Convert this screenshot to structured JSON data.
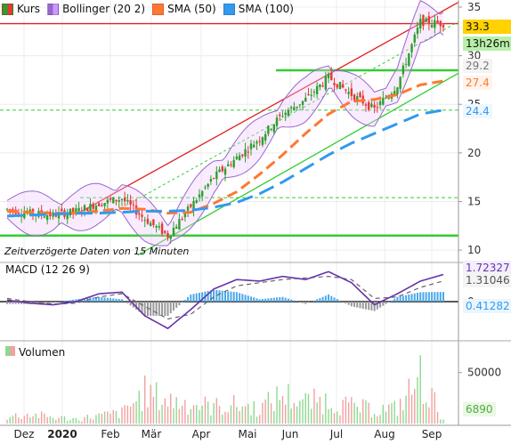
{
  "legend": [
    {
      "label": "Kurs",
      "swatch": [
        "#2ca02c",
        "#e53935"
      ]
    },
    {
      "label": "Bollinger (20 2)",
      "swatch": [
        "#9966cc",
        "#cc99ff"
      ]
    },
    {
      "label": "SMA (50)",
      "swatch": [
        "#ff7733",
        "#ff7733"
      ]
    },
    {
      "label": "SMA (100)",
      "swatch": [
        "#3399ee",
        "#3399ee"
      ]
    }
  ],
  "note": "Zeitverzögerte Daten von 15 Minuten",
  "price_tags": {
    "last": "33.3",
    "time": "13h26m",
    "bb_upper": "29.2",
    "sma50": "27.4",
    "sma100": "24.4"
  },
  "macd_tags": {
    "macd": "1.72327",
    "signal": "1.31046",
    "hist": "0.41282"
  },
  "volume_tags": {
    "last": "6890"
  },
  "colors": {
    "up": "#2ca02c",
    "down": "#e53935",
    "bollinger": "#9966cc",
    "sma50": "#ff7733",
    "sma100": "#3399ee",
    "trend_red": "#e02020",
    "trend_green": "#33cc33",
    "macd_line": "#6633aa",
    "macd_hist": "#4aa8e8"
  },
  "chart_data": [
    {
      "type": "candlestick",
      "title": "Kurs",
      "x_ticks": [
        "Dez",
        "2020",
        "Feb",
        "Mär",
        "Apr",
        "Mai",
        "Jun",
        "Jul",
        "Aug",
        "Sep"
      ],
      "y_ticks": [
        10,
        15,
        20,
        25,
        30,
        35
      ],
      "ylim": [
        9,
        35
      ],
      "horizontal_levels": [
        33.3,
        28.5,
        24.4,
        15.4,
        11.5
      ],
      "series": [
        {
          "name": "Kurs",
          "x": [
            "2019-12-01",
            "2019-12-15",
            "2020-01-01",
            "2020-01-15",
            "2020-02-01",
            "2020-02-15",
            "2020-03-01",
            "2020-03-15",
            "2020-04-01",
            "2020-04-15",
            "2020-05-01",
            "2020-05-15",
            "2020-06-01",
            "2020-06-15",
            "2020-07-01",
            "2020-07-15",
            "2020-08-01",
            "2020-08-15",
            "2020-09-01",
            "2020-09-07"
          ],
          "values": [
            14.2,
            13.8,
            13.6,
            14.0,
            14.8,
            15.3,
            13.2,
            11.5,
            14.5,
            17.5,
            19.5,
            21.5,
            24.0,
            25.5,
            27.8,
            26.0,
            24.5,
            27.0,
            33.5,
            33.3
          ]
        },
        {
          "name": "SMA (50)",
          "values": [
            14.0,
            13.9,
            13.8,
            13.8,
            14.0,
            14.3,
            14.2,
            13.8,
            13.9,
            14.8,
            16.0,
            17.8,
            19.8,
            22.0,
            24.0,
            25.3,
            25.5,
            26.0,
            27.0,
            27.4
          ]
        },
        {
          "name": "SMA (100)",
          "values": [
            13.5,
            13.6,
            13.7,
            13.8,
            13.8,
            13.9,
            14.0,
            14.0,
            14.1,
            14.4,
            14.9,
            15.8,
            17.0,
            18.4,
            19.8,
            21.0,
            22.0,
            23.0,
            24.0,
            24.4
          ]
        }
      ]
    },
    {
      "type": "line",
      "title": "MACD (12 26 9)",
      "y_ticks": [
        0
      ],
      "series": [
        {
          "name": "MACD",
          "values": [
            0.1,
            -0.1,
            -0.2,
            0.0,
            0.5,
            0.6,
            -0.9,
            -1.7,
            -0.5,
            0.8,
            1.4,
            1.3,
            1.6,
            1.4,
            1.9,
            1.2,
            -0.2,
            0.5,
            1.3,
            1.72
          ]
        },
        {
          "name": "Signal",
          "values": [
            0.2,
            0.0,
            -0.15,
            -0.1,
            0.3,
            0.5,
            -0.3,
            -1.1,
            -0.8,
            0.3,
            1.0,
            1.2,
            1.4,
            1.5,
            1.6,
            1.4,
            0.2,
            0.3,
            0.9,
            1.31
          ]
        }
      ]
    },
    {
      "type": "bar",
      "title": "Volumen",
      "y_ticks": [
        50000
      ],
      "series": [
        {
          "name": "Volumen",
          "values": [
            9000,
            12000,
            8000,
            6000,
            10000,
            14000,
            40000,
            30000,
            26000,
            22000,
            24000,
            20000,
            38000,
            28000,
            30000,
            22000,
            18000,
            20000,
            60000,
            6890
          ]
        }
      ]
    }
  ]
}
